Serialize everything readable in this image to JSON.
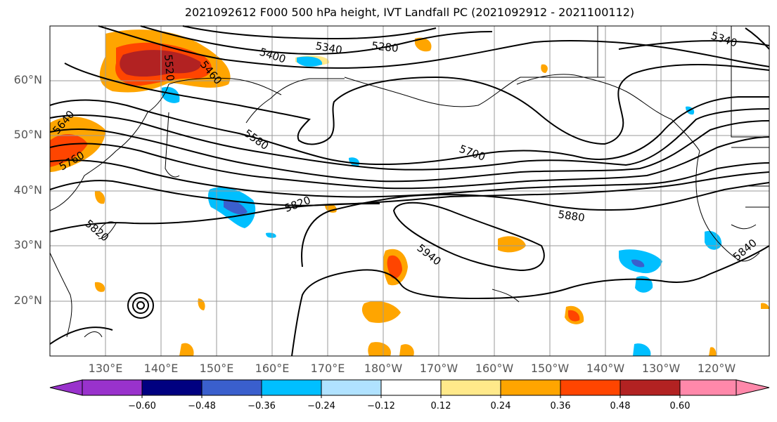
{
  "title": "2021092612 F000 500 hPa height, IVT Landfall PC (2021092912 - 2021100112)",
  "lat_labels": [
    "60°N",
    "50°N",
    "40°N",
    "30°N",
    "20°N"
  ],
  "lon_labels": [
    "130°E",
    "140°E",
    "150°E",
    "160°E",
    "170°E",
    "180°W",
    "170°W",
    "160°W",
    "150°W",
    "140°W",
    "130°W",
    "120°W"
  ],
  "contour_labels": [
    "5280",
    "5340",
    "5340",
    "5400",
    "5460",
    "5520",
    "5580",
    "5640",
    "5700",
    "5760",
    "5820",
    "5880",
    "5940",
    "5820",
    "5840"
  ],
  "colorbar": {
    "ticks": [
      "−0.60",
      "−0.48",
      "−0.36",
      "−0.24",
      "−0.12",
      "0.12",
      "0.24",
      "0.36",
      "0.48",
      "0.60"
    ],
    "colors": [
      "#9932cc",
      "#000080",
      "#3a5fcd",
      "#00bfff",
      "#b0e2ff",
      "#ffffff",
      "#ffe98a",
      "#ffa500",
      "#ff4500",
      "#b22222",
      "#ff88aa"
    ]
  }
}
